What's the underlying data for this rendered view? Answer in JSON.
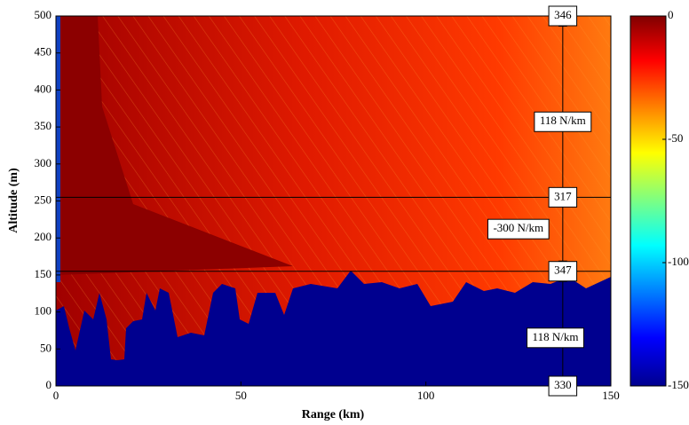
{
  "chart_data": {
    "type": "heatmap",
    "xlabel": "Range (km)",
    "ylabel": "Altitude (m)",
    "xlim": [
      0,
      150
    ],
    "ylim": [
      0,
      500
    ],
    "xticks": [
      0,
      50,
      100,
      150
    ],
    "yticks": [
      0,
      50,
      100,
      150,
      200,
      250,
      300,
      350,
      400,
      450,
      500
    ],
    "colormap": "jet",
    "clim": [
      -150,
      0
    ],
    "cticks": [
      -150,
      -100,
      -50,
      0
    ],
    "hlines": [
      255,
      155
    ],
    "arrows": [
      {
        "x": 137,
        "from": 255,
        "to": 500
      },
      {
        "x": 137,
        "from": 255,
        "to": 155
      },
      {
        "x": 137,
        "from": 0,
        "to": 155
      }
    ],
    "annotations": [
      {
        "text": "346",
        "x": 137,
        "y": 500
      },
      {
        "text": "118 N/km",
        "x": 137,
        "y": 357
      },
      {
        "text": "317",
        "x": 137,
        "y": 255
      },
      {
        "text": "-300 N/km",
        "x": 125,
        "y": 212
      },
      {
        "text": "347",
        "x": 137,
        "y": 155
      },
      {
        "text": "118 N/km",
        "x": 135,
        "y": 65
      },
      {
        "text": "330",
        "x": 137,
        "y": 0
      }
    ]
  }
}
